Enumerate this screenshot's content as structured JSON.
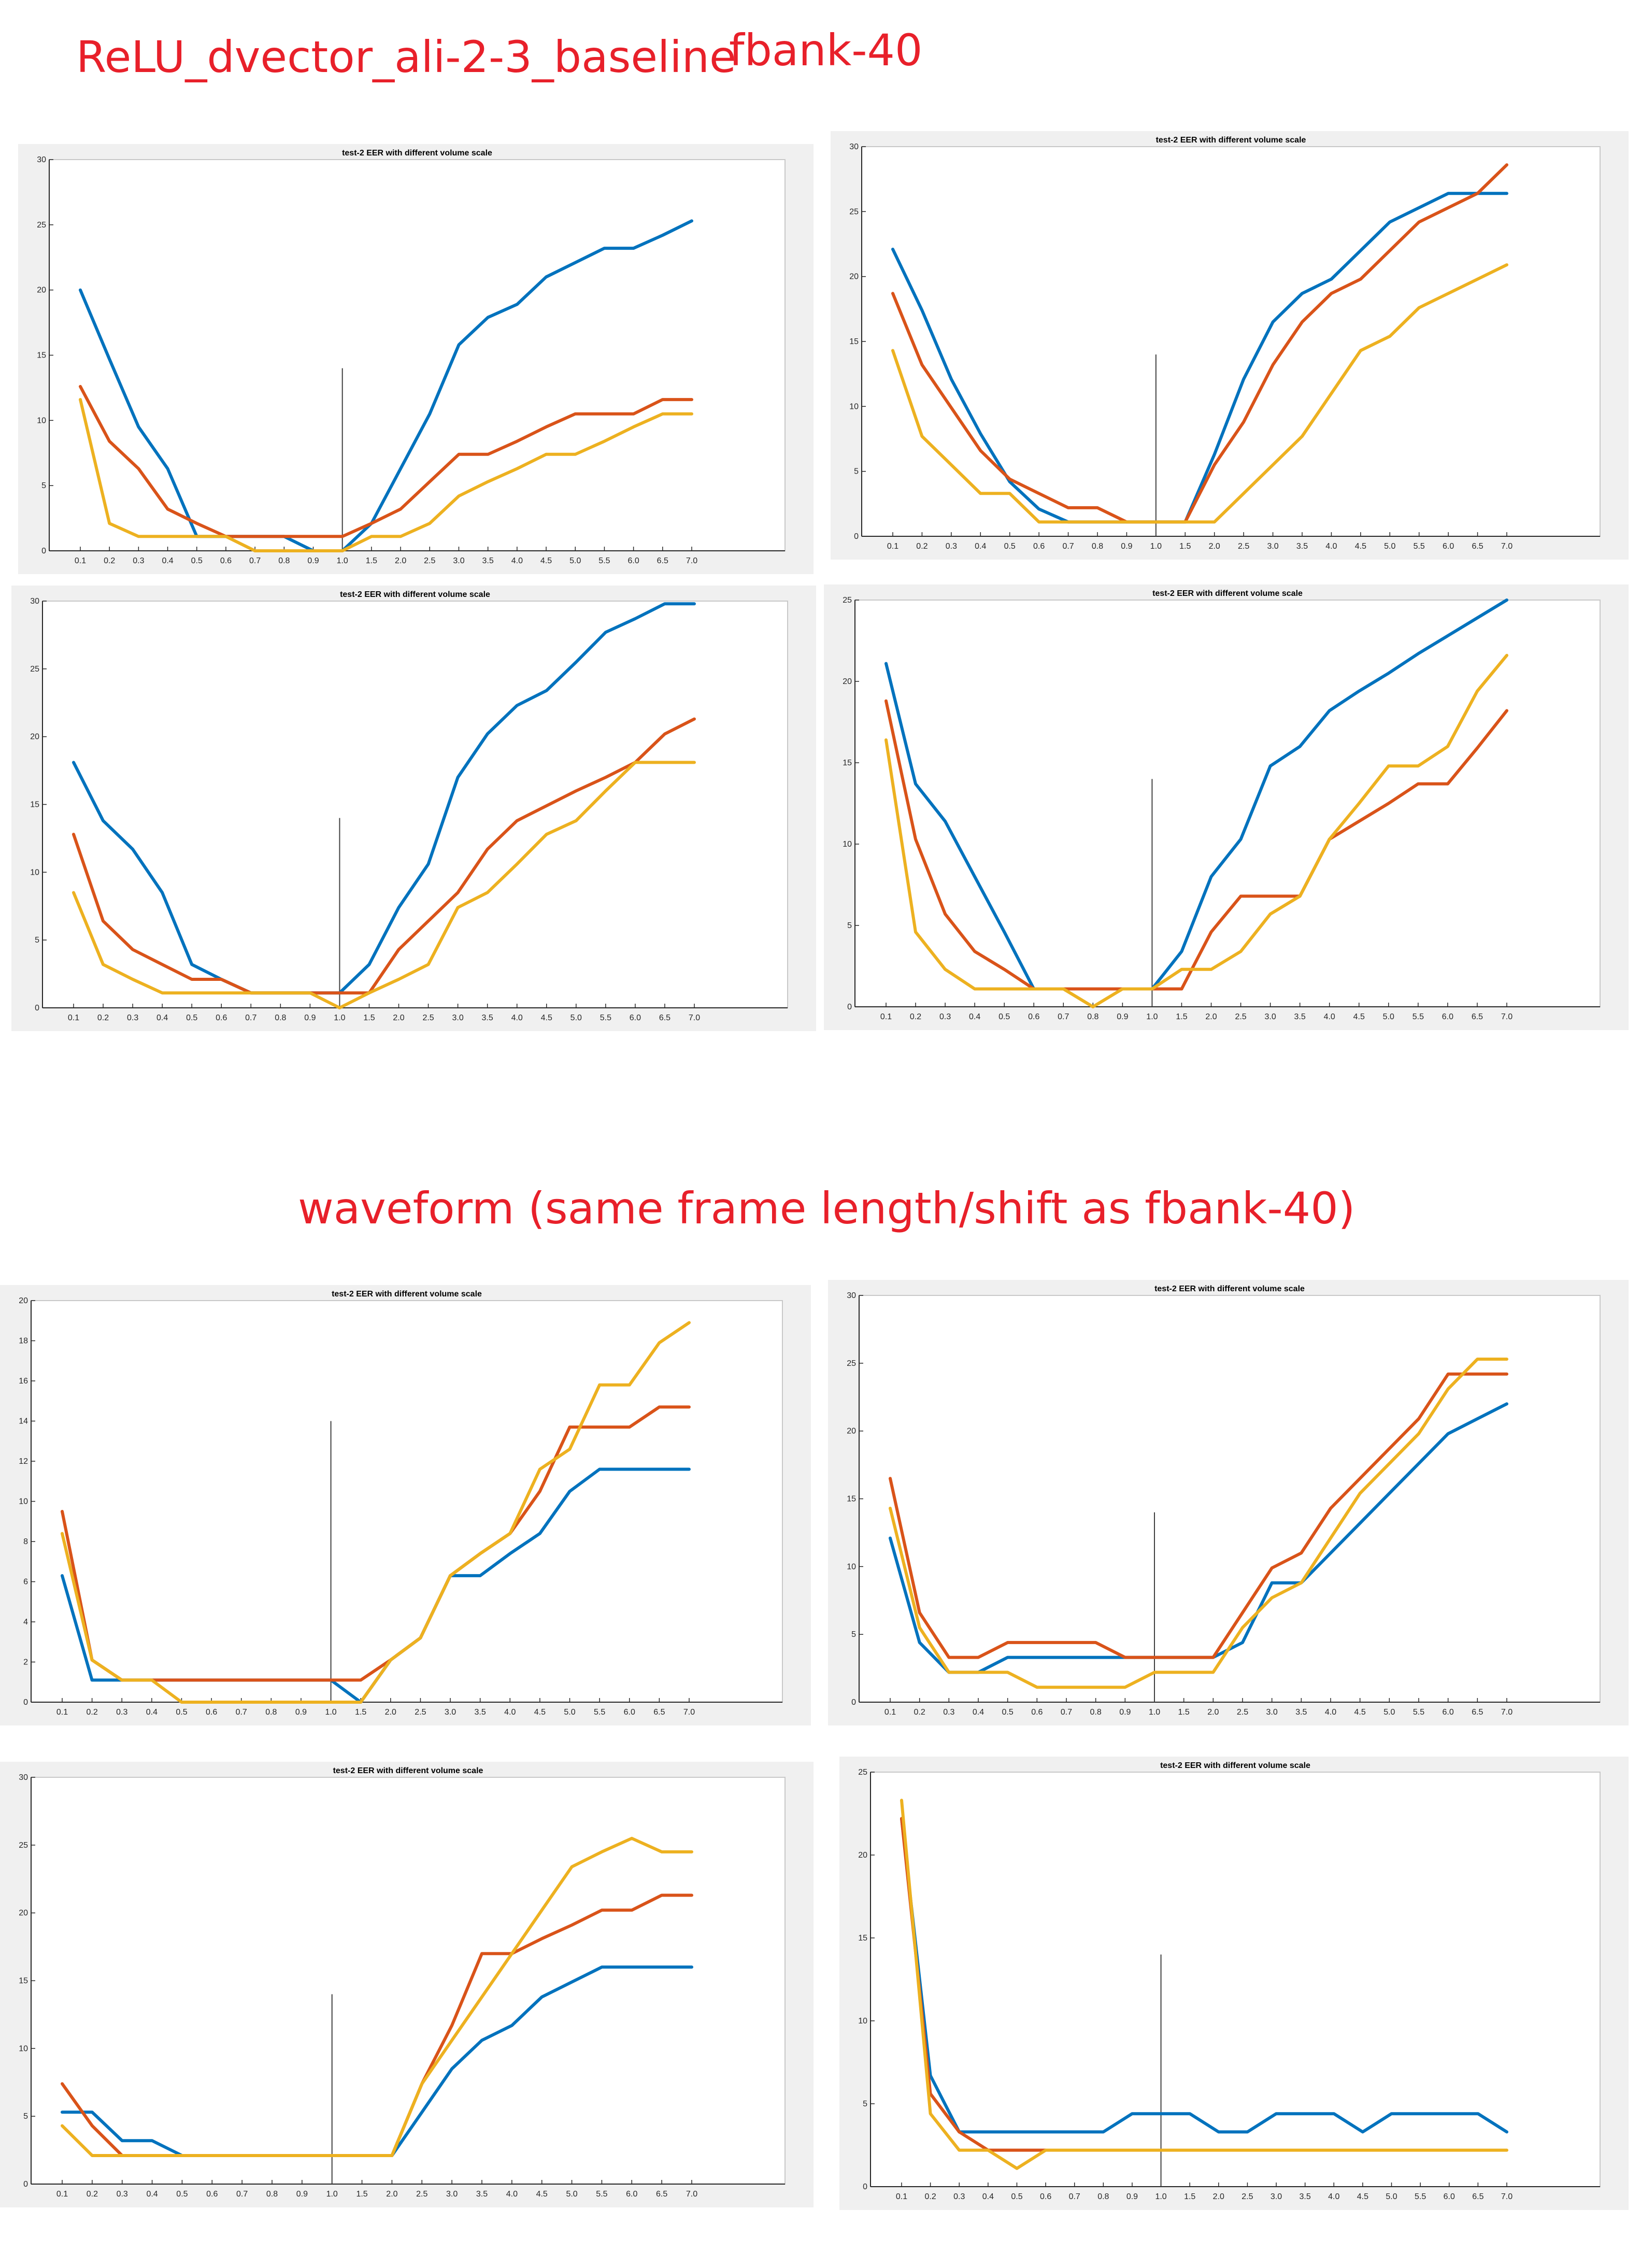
{
  "headings": {
    "model": "ReLU_dvector_ali-2-3_baseline",
    "feature": "fbank-40",
    "waveform": "waveform (same frame length/shift as fbank-40)"
  },
  "colors": {
    "series1": "#0072bd",
    "series2": "#d95319",
    "series3": "#edb120",
    "heading": "#e8202a"
  },
  "chart_data": [
    {
      "type": "line",
      "title": "test-2 EER with different volume scale",
      "categories": [
        "0.1",
        "0.2",
        "0.3",
        "0.4",
        "0.5",
        "0.6",
        "0.7",
        "0.8",
        "0.9",
        "1.0",
        "1.5",
        "2.0",
        "2.5",
        "3.0",
        "3.5",
        "4.0",
        "4.5",
        "5.0",
        "5.5",
        "6.0",
        "6.5",
        "7.0"
      ],
      "ylim": [
        0,
        30
      ],
      "yticks": [
        0,
        5,
        10,
        15,
        20,
        25,
        30
      ],
      "marker_x": "1.0",
      "marker_y": 14,
      "series": [
        {
          "name": "series1",
          "values": [
            20,
            14.7,
            9.5,
            6.3,
            1.1,
            1.1,
            1.1,
            1.1,
            0,
            0,
            2.1,
            6.3,
            10.5,
            15.8,
            17.9,
            18.9,
            21,
            22.1,
            23.2,
            23.2,
            24.2,
            25.3
          ]
        },
        {
          "name": "series2",
          "values": [
            12.6,
            8.4,
            6.3,
            3.2,
            2.1,
            1.1,
            1.1,
            1.1,
            1.1,
            1.1,
            2.1,
            3.2,
            5.3,
            7.4,
            7.4,
            8.4,
            9.5,
            10.5,
            10.5,
            10.5,
            11.6,
            11.6
          ]
        },
        {
          "name": "series3",
          "values": [
            11.6,
            2.1,
            1.1,
            1.1,
            1.1,
            1.1,
            0,
            0,
            0,
            0,
            1.1,
            1.1,
            2.1,
            4.2,
            5.3,
            6.3,
            7.4,
            7.4,
            8.4,
            9.5,
            10.5,
            10.5
          ]
        }
      ]
    },
    {
      "type": "line",
      "title": "test-2 EER with different volume scale",
      "categories": [
        "0.1",
        "0.2",
        "0.3",
        "0.4",
        "0.5",
        "0.6",
        "0.7",
        "0.8",
        "0.9",
        "1.0",
        "1.5",
        "2.0",
        "2.5",
        "3.0",
        "3.5",
        "4.0",
        "4.5",
        "5.0",
        "5.5",
        "6.0",
        "6.5",
        "7.0"
      ],
      "ylim": [
        0,
        30
      ],
      "yticks": [
        0,
        5,
        10,
        15,
        20,
        25,
        30
      ],
      "marker_x": "1.0",
      "marker_y": 14,
      "series": [
        {
          "name": "series1",
          "values": [
            22.1,
            17.4,
            12.1,
            7.9,
            4.2,
            2.1,
            1.1,
            1.1,
            1.1,
            1.1,
            1.1,
            6.3,
            12.1,
            16.5,
            18.7,
            19.8,
            22,
            24.2,
            25.3,
            26.4,
            26.4,
            26.4
          ]
        },
        {
          "name": "series2",
          "values": [
            18.7,
            13.2,
            9.9,
            6.6,
            4.4,
            3.3,
            2.2,
            2.2,
            1.1,
            1.1,
            1.1,
            5.5,
            8.8,
            13.2,
            16.5,
            18.7,
            19.8,
            22,
            24.2,
            25.3,
            26.4,
            28.6
          ]
        },
        {
          "name": "series3",
          "values": [
            14.3,
            7.7,
            5.5,
            3.3,
            3.3,
            1.1,
            1.1,
            1.1,
            1.1,
            1.1,
            1.1,
            1.1,
            3.3,
            5.5,
            7.7,
            11,
            14.3,
            15.4,
            17.6,
            18.7,
            19.8,
            20.9
          ]
        }
      ]
    },
    {
      "type": "line",
      "title": "test-2 EER with different volume scale",
      "categories": [
        "0.1",
        "0.2",
        "0.3",
        "0.4",
        "0.5",
        "0.6",
        "0.7",
        "0.8",
        "0.9",
        "1.0",
        "1.5",
        "2.0",
        "2.5",
        "3.0",
        "3.5",
        "4.0",
        "4.5",
        "5.0",
        "5.5",
        "6.0",
        "6.5",
        "7.0"
      ],
      "ylim": [
        0,
        30
      ],
      "yticks": [
        0,
        5,
        10,
        15,
        20,
        25,
        30
      ],
      "marker_x": "1.0",
      "marker_y": 14,
      "series": [
        {
          "name": "series1",
          "values": [
            18.1,
            13.8,
            11.7,
            8.5,
            3.2,
            2.1,
            1.1,
            1.1,
            1.1,
            1.1,
            3.2,
            7.4,
            10.6,
            17,
            20.2,
            22.3,
            23.4,
            25.5,
            27.7,
            28.7,
            29.8,
            29.8
          ]
        },
        {
          "name": "series2",
          "values": [
            12.8,
            6.4,
            4.3,
            3.2,
            2.1,
            2.1,
            1.1,
            1.1,
            1.1,
            1.1,
            1.1,
            4.3,
            6.4,
            8.5,
            11.7,
            13.8,
            14.9,
            16,
            17,
            18.1,
            20.2,
            21.3
          ]
        },
        {
          "name": "series3",
          "values": [
            8.5,
            3.2,
            2.1,
            1.1,
            1.1,
            1.1,
            1.1,
            1.1,
            1.1,
            0,
            1.1,
            2.1,
            3.2,
            7.4,
            8.5,
            10.6,
            12.8,
            13.8,
            16,
            18.1,
            18.1,
            18.1
          ]
        }
      ]
    },
    {
      "type": "line",
      "title": "test-2 EER with different volume scale",
      "categories": [
        "0.1",
        "0.2",
        "0.3",
        "0.4",
        "0.5",
        "0.6",
        "0.7",
        "0.8",
        "0.9",
        "1.0",
        "1.5",
        "2.0",
        "2.5",
        "3.0",
        "3.5",
        "4.0",
        "4.5",
        "5.0",
        "5.5",
        "6.0",
        "6.5",
        "7.0"
      ],
      "ylim": [
        0,
        25
      ],
      "yticks": [
        0,
        5,
        10,
        15,
        20,
        25
      ],
      "marker_x": "1.0",
      "marker_y": 14,
      "series": [
        {
          "name": "series1",
          "values": [
            21.1,
            13.7,
            11.4,
            8,
            4.6,
            1.1,
            1.1,
            1.1,
            1.1,
            1.1,
            3.4,
            8,
            10.3,
            14.8,
            16,
            18.2,
            19.4,
            20.5,
            21.7,
            22.8,
            23.9,
            25
          ]
        },
        {
          "name": "series2",
          "values": [
            18.8,
            10.3,
            5.7,
            3.4,
            2.3,
            1.1,
            1.1,
            1.1,
            1.1,
            1.1,
            1.1,
            4.6,
            6.8,
            6.8,
            6.8,
            10.3,
            11.4,
            12.5,
            13.7,
            13.7,
            15.9,
            18.2
          ]
        },
        {
          "name": "series3",
          "values": [
            16.4,
            4.6,
            2.3,
            1.1,
            1.1,
            1.1,
            1.1,
            0,
            1.1,
            1.1,
            2.3,
            2.3,
            3.4,
            5.7,
            6.8,
            10.3,
            12.5,
            14.8,
            14.8,
            16,
            19.4,
            21.6
          ]
        }
      ]
    },
    {
      "type": "line",
      "title": "test-2 EER with different volume scale",
      "categories": [
        "0.1",
        "0.2",
        "0.3",
        "0.4",
        "0.5",
        "0.6",
        "0.7",
        "0.8",
        "0.9",
        "1.0",
        "1.5",
        "2.0",
        "2.5",
        "3.0",
        "3.5",
        "4.0",
        "4.5",
        "5.0",
        "5.5",
        "6.0",
        "6.5",
        "7.0"
      ],
      "ylim": [
        0,
        20
      ],
      "yticks": [
        0,
        2,
        4,
        6,
        8,
        10,
        12,
        14,
        16,
        18,
        20
      ],
      "marker_x": "1.0",
      "marker_y": 14,
      "series": [
        {
          "name": "series1",
          "values": [
            6.3,
            1.1,
            1.1,
            1.1,
            1.1,
            1.1,
            1.1,
            1.1,
            1.1,
            1.1,
            0,
            2.1,
            3.2,
            6.3,
            6.3,
            7.4,
            8.4,
            10.5,
            11.6,
            11.6,
            11.6,
            11.6
          ]
        },
        {
          "name": "series2",
          "values": [
            9.5,
            2.1,
            1.1,
            1.1,
            1.1,
            1.1,
            1.1,
            1.1,
            1.1,
            1.1,
            1.1,
            2.1,
            3.2,
            6.3,
            7.4,
            8.4,
            10.5,
            13.7,
            13.7,
            13.7,
            14.7,
            14.7
          ]
        },
        {
          "name": "series3",
          "values": [
            8.4,
            2.1,
            1.1,
            1.1,
            0,
            0,
            0,
            0,
            0,
            0,
            0,
            2.1,
            3.2,
            6.3,
            7.4,
            8.4,
            11.6,
            12.6,
            15.8,
            15.8,
            17.9,
            18.9
          ]
        }
      ]
    },
    {
      "type": "line",
      "title": "test-2 EER with different volume scale",
      "categories": [
        "0.1",
        "0.2",
        "0.3",
        "0.4",
        "0.5",
        "0.6",
        "0.7",
        "0.8",
        "0.9",
        "1.0",
        "1.5",
        "2.0",
        "2.5",
        "3.0",
        "3.5",
        "4.0",
        "4.5",
        "5.0",
        "5.5",
        "6.0",
        "6.5",
        "7.0"
      ],
      "ylim": [
        0,
        30
      ],
      "yticks": [
        0,
        5,
        10,
        15,
        20,
        25,
        30
      ],
      "marker_x": "1.0",
      "marker_y": 14,
      "series": [
        {
          "name": "series1",
          "values": [
            12.1,
            4.4,
            2.2,
            2.2,
            3.3,
            3.3,
            3.3,
            3.3,
            3.3,
            3.3,
            3.3,
            3.3,
            4.4,
            8.8,
            8.8,
            11,
            13.2,
            15.4,
            17.6,
            19.8,
            20.9,
            22
          ]
        },
        {
          "name": "series2",
          "values": [
            16.5,
            6.6,
            3.3,
            3.3,
            4.4,
            4.4,
            4.4,
            4.4,
            3.3,
            3.3,
            3.3,
            3.3,
            6.6,
            9.9,
            11,
            14.3,
            16.5,
            18.7,
            20.9,
            24.2,
            24.2,
            24.2
          ]
        },
        {
          "name": "series3",
          "values": [
            14.3,
            5.5,
            2.2,
            2.2,
            2.2,
            1.1,
            1.1,
            1.1,
            1.1,
            2.2,
            2.2,
            2.2,
            5.5,
            7.7,
            8.8,
            12.1,
            15.4,
            17.6,
            19.8,
            23.1,
            25.3,
            25.3
          ]
        }
      ]
    },
    {
      "type": "line",
      "title": "test-2 EER with different volume scale",
      "categories": [
        "0.1",
        "0.2",
        "0.3",
        "0.4",
        "0.5",
        "0.6",
        "0.7",
        "0.8",
        "0.9",
        "1.0",
        "1.5",
        "2.0",
        "2.5",
        "3.0",
        "3.5",
        "4.0",
        "4.5",
        "5.0",
        "5.5",
        "6.0",
        "6.5",
        "7.0"
      ],
      "ylim": [
        0,
        30
      ],
      "yticks": [
        0,
        5,
        10,
        15,
        20,
        25,
        30
      ],
      "marker_x": "1.0",
      "marker_y": 14,
      "series": [
        {
          "name": "series1",
          "values": [
            5.3,
            5.3,
            3.2,
            3.2,
            2.1,
            2.1,
            2.1,
            2.1,
            2.1,
            2.1,
            2.1,
            2.1,
            5.3,
            8.5,
            10.6,
            11.7,
            13.8,
            14.9,
            16,
            16,
            16,
            16
          ]
        },
        {
          "name": "series2",
          "values": [
            7.4,
            4.3,
            2.1,
            2.1,
            2.1,
            2.1,
            2.1,
            2.1,
            2.1,
            2.1,
            2.1,
            2.1,
            7.4,
            11.7,
            17,
            17,
            18.1,
            19.1,
            20.2,
            20.2,
            21.3,
            21.3
          ]
        },
        {
          "name": "series3",
          "values": [
            4.3,
            2.1,
            2.1,
            2.1,
            2.1,
            2.1,
            2.1,
            2.1,
            2.1,
            2.1,
            2.1,
            2.1,
            7.4,
            10.6,
            13.8,
            17,
            20.2,
            23.4,
            24.5,
            25.5,
            24.5,
            24.5
          ]
        }
      ]
    },
    {
      "type": "line",
      "title": "test-2 EER with different volume scale",
      "categories": [
        "0.1",
        "0.2",
        "0.3",
        "0.4",
        "0.5",
        "0.6",
        "0.7",
        "0.8",
        "0.9",
        "1.0",
        "1.5",
        "2.0",
        "2.5",
        "3.0",
        "3.5",
        "4.0",
        "4.5",
        "5.0",
        "5.5",
        "6.0",
        "6.5",
        "7.0"
      ],
      "ylim": [
        0,
        25
      ],
      "yticks": [
        0,
        5,
        10,
        15,
        20,
        25
      ],
      "marker_x": "1.0",
      "marker_y": 14,
      "series": [
        {
          "name": "series1",
          "values": [
            22.2,
            6.7,
            3.3,
            3.3,
            3.3,
            3.3,
            3.3,
            3.3,
            4.4,
            4.4,
            4.4,
            3.3,
            3.3,
            4.4,
            4.4,
            4.4,
            3.3,
            4.4,
            4.4,
            4.4,
            4.4,
            3.3
          ]
        },
        {
          "name": "series2",
          "values": [
            22.2,
            5.6,
            3.3,
            2.2,
            2.2,
            2.2,
            null,
            null,
            null,
            null,
            null,
            null,
            null,
            null,
            null,
            null,
            null,
            null,
            null,
            null,
            null,
            null
          ]
        },
        {
          "name": "series3",
          "values": [
            23.3,
            4.4,
            2.2,
            2.2,
            1.1,
            2.2,
            2.2,
            2.2,
            2.2,
            2.2,
            2.2,
            2.2,
            2.2,
            2.2,
            2.2,
            2.2,
            2.2,
            2.2,
            2.2,
            2.2,
            2.2,
            2.2
          ]
        }
      ]
    }
  ]
}
